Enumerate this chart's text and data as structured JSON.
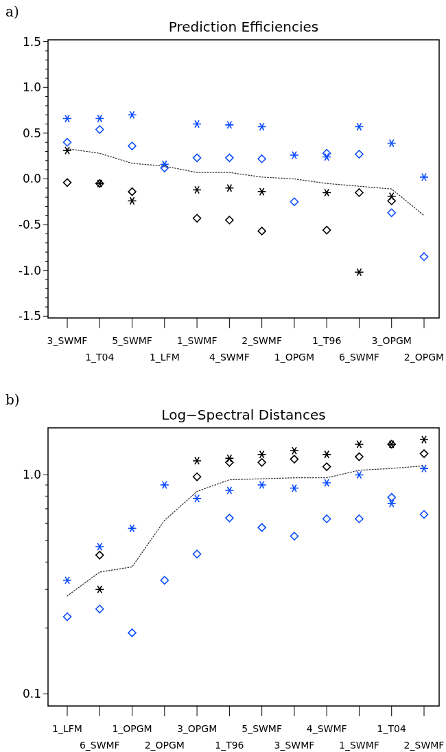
{
  "chart_data": [
    {
      "type": "scatter",
      "title": "Prediction Efficiencies",
      "annotations": [
        "a)"
      ],
      "categories": [
        "3_SWMF",
        "1_T04",
        "5_SWMF",
        "1_LFM",
        "1_SWMF",
        "4_SWMF",
        "2_SWMF",
        "1_OPGM",
        "1_T96",
        "6_SWMF",
        "3_OPGM",
        "2_OPGM"
      ],
      "series": [
        {
          "color": "#0a4cff",
          "marker": "cross",
          "values": [
            0.66,
            0.66,
            0.7,
            0.16,
            0.6,
            0.59,
            0.57,
            0.26,
            0.24,
            0.57,
            0.39,
            0.02
          ]
        },
        {
          "color": "#0a4cff",
          "marker": "diamond",
          "values": [
            0.4,
            0.54,
            0.36,
            0.12,
            0.23,
            0.23,
            0.22,
            -0.25,
            0.28,
            0.27,
            -0.37,
            -0.85
          ]
        },
        {
          "color": "#000000",
          "marker": "cross",
          "values": [
            0.31,
            -0.05,
            -0.24,
            null,
            -0.12,
            -0.1,
            -0.14,
            null,
            -0.15,
            -1.02,
            -0.19,
            null
          ]
        },
        {
          "color": "#000000",
          "marker": "diamond",
          "values": [
            -0.04,
            -0.05,
            -0.14,
            null,
            -0.43,
            -0.45,
            -0.57,
            null,
            -0.56,
            -0.15,
            -0.24,
            null
          ]
        },
        {
          "type": "line",
          "color": "#333333",
          "marker": "none",
          "line_style": "dotted",
          "values": [
            0.33,
            0.28,
            0.17,
            0.14,
            0.07,
            0.07,
            0.02,
            0.0,
            -0.05,
            -0.08,
            -0.11,
            -0.4
          ]
        }
      ],
      "ylim": [
        -1.52,
        1.52
      ],
      "yticks": [
        {
          "value": -1.5,
          "label": "-1.5"
        },
        {
          "value": -1.4,
          "label": null
        },
        {
          "value": -1.3,
          "label": null
        },
        {
          "value": -1.2,
          "label": null
        },
        {
          "value": -1.1,
          "label": null
        },
        {
          "value": -1.0,
          "label": "-1.0"
        },
        {
          "value": -0.9,
          "label": null
        },
        {
          "value": -0.8,
          "label": null
        },
        {
          "value": -0.7,
          "label": null
        },
        {
          "value": -0.6,
          "label": null
        },
        {
          "value": -0.5,
          "label": "-0.5"
        },
        {
          "value": -0.4,
          "label": null
        },
        {
          "value": -0.3,
          "label": null
        },
        {
          "value": -0.2,
          "label": null
        },
        {
          "value": -0.1,
          "label": null
        },
        {
          "value": 0,
          "label": "0.0"
        },
        {
          "value": 0.1,
          "label": null
        },
        {
          "value": 0.2,
          "label": null
        },
        {
          "value": 0.3,
          "label": null
        },
        {
          "value": 0.4,
          "label": null
        },
        {
          "value": 0.5,
          "label": "0.5"
        },
        {
          "value": 0.6,
          "label": null
        },
        {
          "value": 0.7,
          "label": null
        },
        {
          "value": 0.8,
          "label": null
        },
        {
          "value": 0.9,
          "label": null
        },
        {
          "value": 1.0,
          "label": "1.0"
        },
        {
          "value": 1.1,
          "label": null
        },
        {
          "value": 1.2,
          "label": null
        },
        {
          "value": 1.3,
          "label": null
        },
        {
          "value": 1.4,
          "label": null
        },
        {
          "value": 1.5,
          "label": "1.5"
        }
      ],
      "grid": false
    },
    {
      "type": "scatter",
      "title": "Log−Spectral Distances",
      "annotations": [
        "b)"
      ],
      "log": true,
      "categories": [
        "1_LFM",
        "6_SWMF",
        "1_OPGM",
        "2_OPGM",
        "3_OPGM",
        "1_T96",
        "5_SWMF",
        "3_SWMF",
        "4_SWMF",
        "1_SWMF",
        "1_T04",
        "2_SWMF"
      ],
      "series": [
        {
          "color": "#0a4cff",
          "marker": "cross",
          "values": [
            0.33,
            0.47,
            0.57,
            0.9,
            0.78,
            0.85,
            0.9,
            0.87,
            0.92,
            1.0,
            0.74,
            1.07
          ]
        },
        {
          "color": "#0a4cff",
          "marker": "diamond",
          "values": [
            0.225,
            0.244,
            0.19,
            0.33,
            0.435,
            0.635,
            0.575,
            0.525,
            0.63,
            0.63,
            0.79,
            0.66
          ]
        },
        {
          "color": "#000000",
          "marker": "cross",
          "values": [
            null,
            0.3,
            null,
            null,
            1.16,
            1.19,
            1.24,
            1.29,
            1.24,
            1.38,
            1.38,
            1.45
          ]
        },
        {
          "color": "#000000",
          "marker": "diamond",
          "values": [
            null,
            0.43,
            null,
            null,
            0.98,
            1.14,
            1.14,
            1.18,
            1.09,
            1.21,
            1.38,
            1.25
          ]
        },
        {
          "type": "line",
          "color": "#333333",
          "marker": "none",
          "line_style": "dotted",
          "values": [
            0.28,
            0.36,
            0.38,
            0.62,
            0.84,
            0.95,
            0.96,
            0.97,
            0.97,
            1.05,
            1.07,
            1.1
          ]
        }
      ],
      "ylim": [
        0.088,
        1.64
      ],
      "yticks": [
        {
          "value": 0.1,
          "label": "0.1"
        },
        {
          "value": 0.2,
          "label": null
        },
        {
          "value": 0.3,
          "label": null
        },
        {
          "value": 0.4,
          "label": null
        },
        {
          "value": 0.5,
          "label": null
        },
        {
          "value": 0.6,
          "label": null
        },
        {
          "value": 0.7,
          "label": null
        },
        {
          "value": 0.8,
          "label": null
        },
        {
          "value": 0.9,
          "label": null
        },
        {
          "value": 1.0,
          "label": "1.0"
        }
      ],
      "grid": false
    }
  ]
}
